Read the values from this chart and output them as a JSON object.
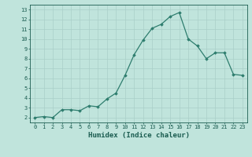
{
  "x": [
    0,
    1,
    2,
    3,
    4,
    5,
    6,
    7,
    8,
    9,
    10,
    11,
    12,
    13,
    14,
    15,
    16,
    17,
    18,
    19,
    20,
    21,
    22,
    23
  ],
  "y": [
    2,
    2.1,
    2,
    2.8,
    2.8,
    2.7,
    3.2,
    3.1,
    3.9,
    4.5,
    6.3,
    8.4,
    9.9,
    11.1,
    11.5,
    12.3,
    12.7,
    10.0,
    9.3,
    8.0,
    8.6,
    8.6,
    6.4,
    6.3
  ],
  "xlabel": "Humidex (Indice chaleur)",
  "ylim": [
    1.5,
    13.5
  ],
  "xlim": [
    -0.5,
    23.5
  ],
  "yticks": [
    2,
    3,
    4,
    5,
    6,
    7,
    8,
    9,
    10,
    11,
    12,
    13
  ],
  "xticks": [
    0,
    1,
    2,
    3,
    4,
    5,
    6,
    7,
    8,
    9,
    10,
    11,
    12,
    13,
    14,
    15,
    16,
    17,
    18,
    19,
    20,
    21,
    22,
    23
  ],
  "line_color": "#2E7D6E",
  "bg_color": "#C0E4DC",
  "grid_color": "#AACFC8",
  "marker": "D",
  "marker_size": 1.8,
  "line_width": 0.9,
  "tick_label_fontsize": 5.0,
  "xlabel_fontsize": 6.5,
  "tick_color": "#1A5C50",
  "axis_color": "#1A5C50"
}
